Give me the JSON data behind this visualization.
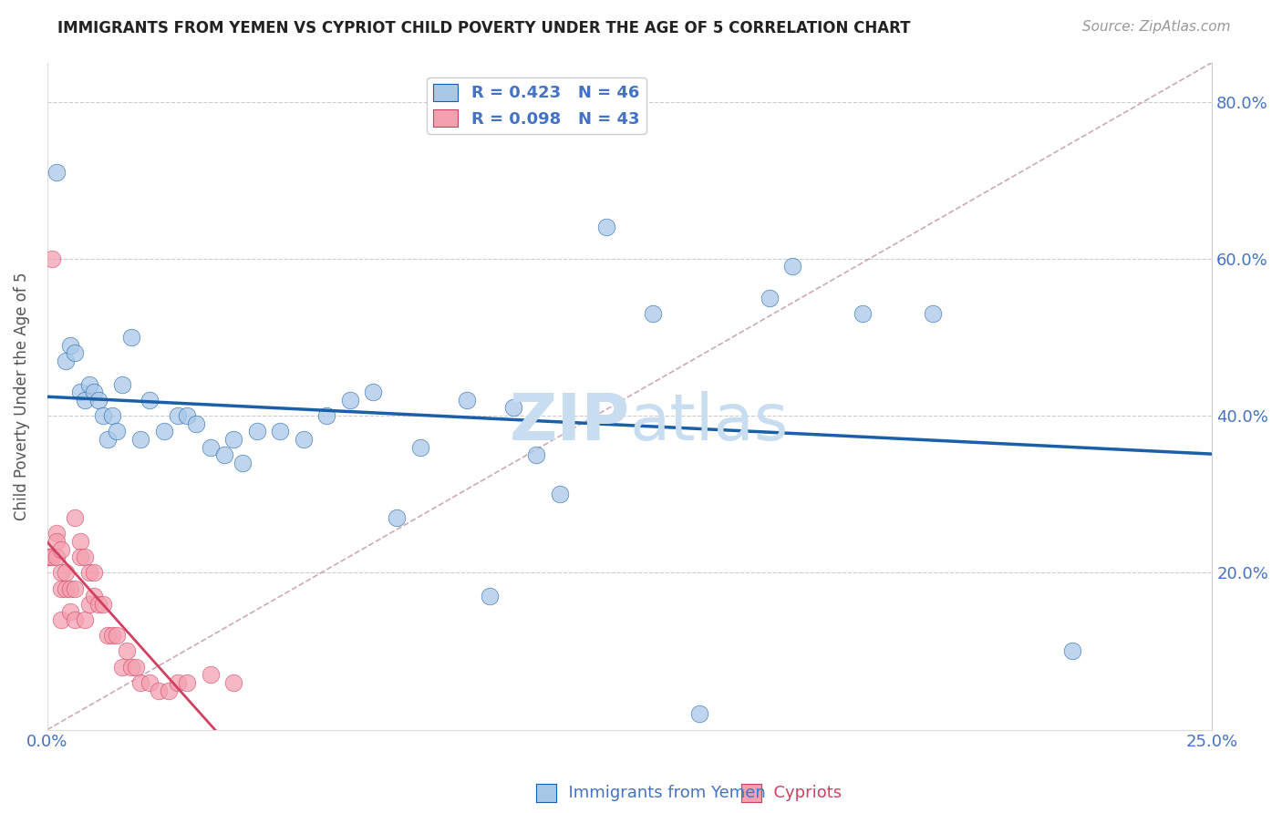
{
  "title": "IMMIGRANTS FROM YEMEN VS CYPRIOT CHILD POVERTY UNDER THE AGE OF 5 CORRELATION CHART",
  "source": "Source: ZipAtlas.com",
  "ylabel": "Child Poverty Under the Age of 5",
  "xlim": [
    0,
    0.25
  ],
  "ylim": [
    0,
    0.85
  ],
  "legend_blue_r": "R = 0.423",
  "legend_blue_n": "N = 46",
  "legend_pink_r": "R = 0.098",
  "legend_pink_n": "N = 43",
  "blue_color": "#a8c8e8",
  "pink_color": "#f4a0b0",
  "line_blue_color": "#1a5fa8",
  "line_pink_color": "#d04060",
  "ref_line_color": "#c8a0b0",
  "text_color": "#4472c4",
  "watermark_color": "#c8ddf0",
  "blue_scatter_x": [
    0.002,
    0.004,
    0.005,
    0.006,
    0.007,
    0.008,
    0.009,
    0.01,
    0.011,
    0.012,
    0.013,
    0.014,
    0.015,
    0.016,
    0.018,
    0.02,
    0.022,
    0.025,
    0.028,
    0.03,
    0.032,
    0.035,
    0.038,
    0.04,
    0.042,
    0.045,
    0.05,
    0.055,
    0.06,
    0.065,
    0.07,
    0.075,
    0.08,
    0.09,
    0.095,
    0.1,
    0.105,
    0.11,
    0.12,
    0.13,
    0.14,
    0.155,
    0.16,
    0.175,
    0.19,
    0.22
  ],
  "blue_scatter_y": [
    0.71,
    0.47,
    0.49,
    0.48,
    0.43,
    0.42,
    0.44,
    0.43,
    0.42,
    0.4,
    0.37,
    0.4,
    0.38,
    0.44,
    0.5,
    0.37,
    0.42,
    0.38,
    0.4,
    0.4,
    0.39,
    0.36,
    0.35,
    0.37,
    0.34,
    0.38,
    0.38,
    0.37,
    0.4,
    0.42,
    0.43,
    0.27,
    0.36,
    0.42,
    0.17,
    0.41,
    0.35,
    0.3,
    0.64,
    0.53,
    0.02,
    0.55,
    0.59,
    0.53,
    0.53,
    0.1
  ],
  "pink_scatter_x": [
    0.0003,
    0.0005,
    0.001,
    0.001,
    0.002,
    0.002,
    0.002,
    0.003,
    0.003,
    0.003,
    0.003,
    0.004,
    0.004,
    0.005,
    0.005,
    0.006,
    0.006,
    0.006,
    0.007,
    0.007,
    0.008,
    0.008,
    0.009,
    0.009,
    0.01,
    0.01,
    0.011,
    0.012,
    0.013,
    0.014,
    0.015,
    0.016,
    0.017,
    0.018,
    0.019,
    0.02,
    0.022,
    0.024,
    0.026,
    0.028,
    0.03,
    0.035,
    0.04
  ],
  "pink_scatter_y": [
    0.22,
    0.22,
    0.6,
    0.22,
    0.25,
    0.24,
    0.22,
    0.23,
    0.2,
    0.18,
    0.14,
    0.2,
    0.18,
    0.18,
    0.15,
    0.27,
    0.18,
    0.14,
    0.24,
    0.22,
    0.22,
    0.14,
    0.2,
    0.16,
    0.2,
    0.17,
    0.16,
    0.16,
    0.12,
    0.12,
    0.12,
    0.08,
    0.1,
    0.08,
    0.08,
    0.06,
    0.06,
    0.05,
    0.05,
    0.06,
    0.06,
    0.07,
    0.06
  ],
  "figsize": [
    14.06,
    8.92
  ],
  "dpi": 100
}
